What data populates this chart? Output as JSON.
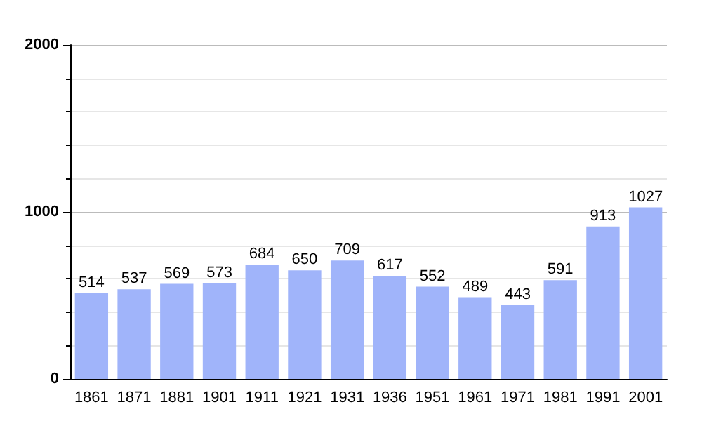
{
  "chart_data": {
    "type": "bar",
    "categories": [
      "1861",
      "1871",
      "1881",
      "1901",
      "1911",
      "1921",
      "1931",
      "1936",
      "1951",
      "1961",
      "1971",
      "1981",
      "1991",
      "2001"
    ],
    "values": [
      514,
      537,
      569,
      573,
      684,
      650,
      709,
      617,
      552,
      489,
      443,
      591,
      913,
      1027
    ],
    "color": "#a0b4fa",
    "ylim": [
      0,
      2000
    ],
    "yticks": [
      0,
      1000,
      2000
    ],
    "grid": true,
    "data_labels": true
  }
}
